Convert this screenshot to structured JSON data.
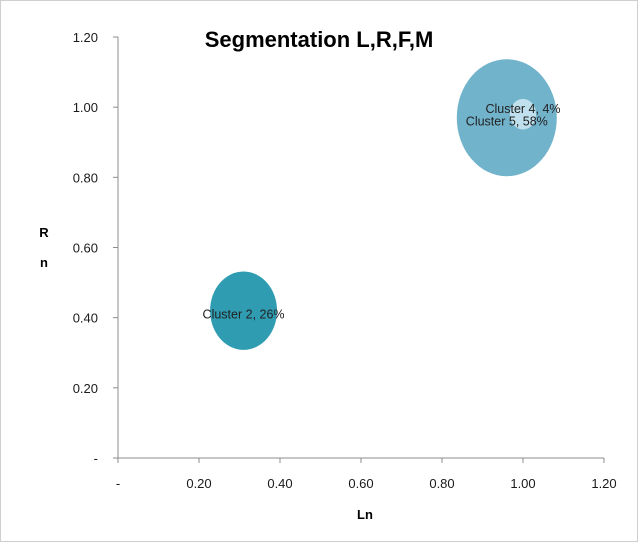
{
  "chart_data": {
    "type": "bubble",
    "title": "Segmentation L,R,F,M",
    "xlabel": "Ln",
    "ylabel": [
      "R",
      "n"
    ],
    "xlim": [
      0,
      1.2
    ],
    "ylim": [
      0,
      1.2
    ],
    "x_ticks": [
      {
        "value": 0,
        "label": "-"
      },
      {
        "value": 0.2,
        "label": "0.20"
      },
      {
        "value": 0.4,
        "label": "0.40"
      },
      {
        "value": 0.6,
        "label": "0.60"
      },
      {
        "value": 0.8,
        "label": "0.80"
      },
      {
        "value": 1.0,
        "label": "1.00"
      },
      {
        "value": 1.2,
        "label": "1.20"
      }
    ],
    "y_ticks": [
      {
        "value": 0,
        "label": "-"
      },
      {
        "value": 0.2,
        "label": "0.20"
      },
      {
        "value": 0.4,
        "label": "0.40"
      },
      {
        "value": 0.6,
        "label": "0.60"
      },
      {
        "value": 0.8,
        "label": "0.80"
      },
      {
        "value": 1.0,
        "label": "1.00"
      },
      {
        "value": 1.2,
        "label": "1.20"
      }
    ],
    "grid": false,
    "series": [
      {
        "name": "Cluster 5",
        "x": 0.96,
        "y": 0.97,
        "share": 58,
        "label": "Cluster 5, 58%",
        "color": "#72b3cc"
      },
      {
        "name": "Cluster 4",
        "x": 1.0,
        "y": 0.98,
        "share": 4,
        "label": "Cluster 4, 4%",
        "color": "#bfe0ec"
      },
      {
        "name": "Cluster 2",
        "x": 0.31,
        "y": 0.42,
        "share": 26,
        "label": "Cluster 2, 26%",
        "color": "#2f9cb2"
      }
    ]
  }
}
